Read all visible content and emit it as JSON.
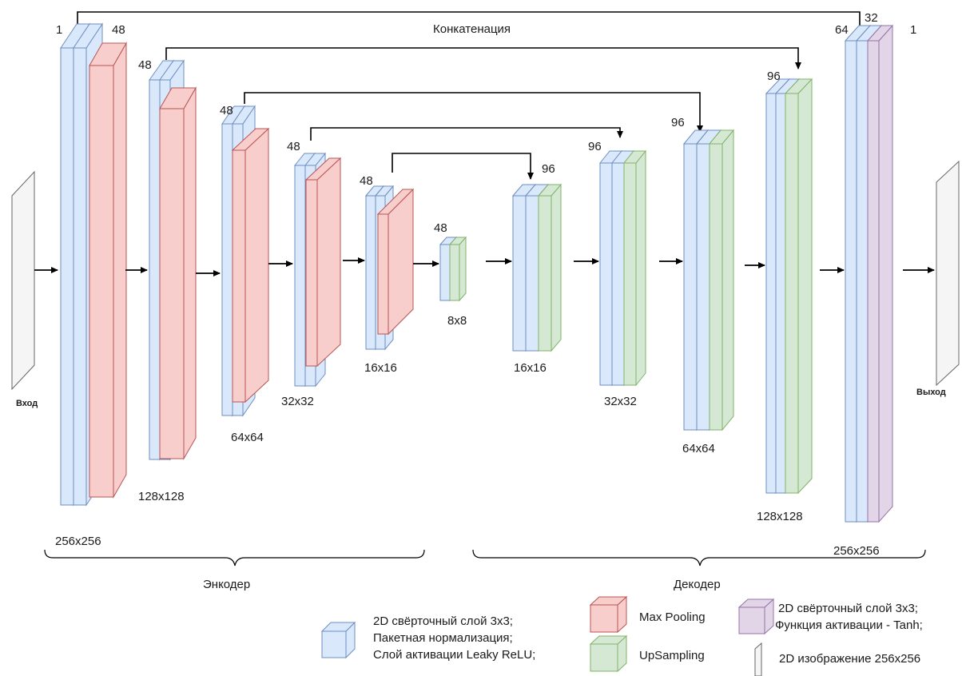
{
  "labels": {
    "input": "Вход",
    "output": "Выход",
    "concat": "Конкатенация",
    "encoder": "Энкодер",
    "decoder": "Декодер"
  },
  "channels": {
    "enc1_in": "1",
    "enc1_out": "48",
    "enc2": "48",
    "enc3": "48",
    "enc4": "48",
    "enc5": "48",
    "bottleneck": "48",
    "dec1": "96",
    "dec2": "96",
    "dec3": "96",
    "dec4": "96",
    "out_a": "64",
    "out_b": "32",
    "out_c": "1"
  },
  "sizes": {
    "enc1": "256x256",
    "enc2": "128x128",
    "enc3": "64x64",
    "enc4": "32x32",
    "enc5": "16x16",
    "bottleneck": "8x8",
    "dec1": "16x16",
    "dec2": "32x32",
    "dec3": "64x64",
    "dec4": "128x128",
    "out": "256x256"
  },
  "legend": {
    "conv_line1": "2D свёрточный слой 3x3;",
    "conv_line2": "Пакетная нормализация;",
    "conv_line3": "Слой активации Leaky ReLU;",
    "maxpool": "Max Pooling",
    "upsampling": "UpSampling",
    "tanh_line1": "2D свёрточный слой 3x3;",
    "tanh_line2": "Функция активации - Tanh;",
    "image": "2D изображение 256x256"
  },
  "colors": {
    "conv_fill": "#dae8fc",
    "conv_stroke": "#6c8ebf",
    "pool_fill": "#f8cecc",
    "pool_stroke": "#b85450",
    "up_fill": "#d5e8d4",
    "up_stroke": "#82b366",
    "tanh_fill": "#e1d5e7",
    "tanh_stroke": "#9673a6",
    "image_fill": "#f5f5f5",
    "image_stroke": "#666666"
  }
}
